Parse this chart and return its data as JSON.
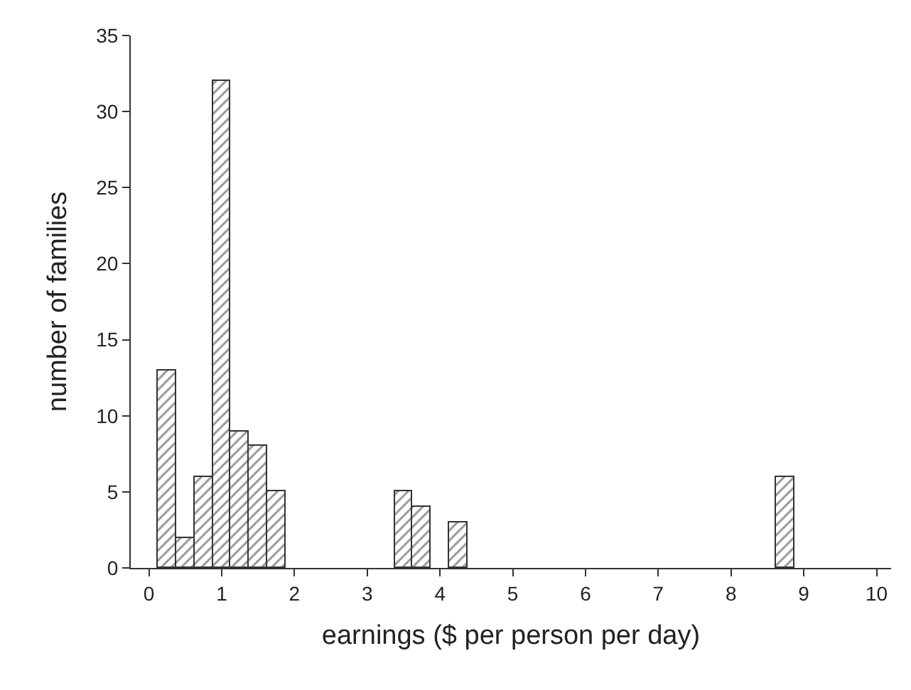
{
  "chart_data": {
    "type": "bar",
    "xlabel": "earnings ($ per person per day)",
    "ylabel": "number of families",
    "x": [
      0.25,
      0.5,
      0.75,
      1.0,
      1.25,
      1.5,
      1.75,
      3.5,
      3.75,
      4.25,
      8.75
    ],
    "values": [
      13,
      2,
      6,
      32,
      9,
      8,
      5,
      5,
      4,
      3,
      6
    ],
    "color": "#333333",
    "xlim": [
      -0.25,
      10.2
    ],
    "xticks": [
      0,
      1,
      2,
      3,
      4,
      5,
      6,
      7,
      8,
      9,
      10
    ],
    "ylim": [
      0,
      35
    ],
    "yticks": [
      0,
      5,
      10,
      15,
      20,
      25,
      30,
      35
    ]
  }
}
